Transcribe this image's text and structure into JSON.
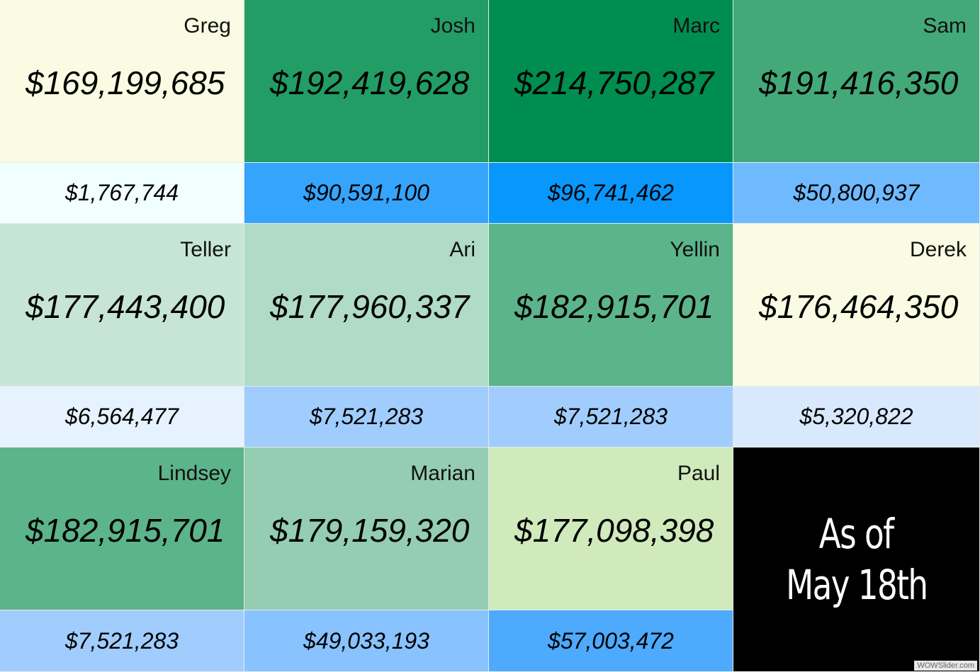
{
  "rows": [
    {
      "cells": [
        {
          "name": "Greg",
          "value": "$169,199,685",
          "sub": "$1,767,744",
          "bg": "#f9fbe2",
          "subbg": "#f1ffff"
        },
        {
          "name": "Josh",
          "value": "$192,419,628",
          "sub": "$90,591,100",
          "bg": "#229d66",
          "subbg": "#35a4fd"
        },
        {
          "name": "Marc",
          "value": "$214,750,287",
          "sub": "$96,741,462",
          "bg": "#008e50",
          "subbg": "#0897fd"
        },
        {
          "name": "Sam",
          "value": "$191,416,350",
          "sub": "$50,800,937",
          "bg": "#43a979",
          "subbg": "#6fbaff"
        }
      ]
    },
    {
      "cells": [
        {
          "name": "Teller",
          "value": "$177,443,400",
          "sub": "$6,564,477",
          "bg": "#c7e5d6",
          "subbg": "#e6f2ff"
        },
        {
          "name": "Ari",
          "value": "$177,960,337",
          "sub": "$7,521,283",
          "bg": "#b0dbc7",
          "subbg": "#a1cdfe"
        },
        {
          "name": "Yellin",
          "value": "$182,915,701",
          "sub": "$7,521,283",
          "bg": "#5cb48b",
          "subbg": "#a1cdfe"
        },
        {
          "name": "Derek",
          "value": "$176,464,350",
          "sub": "$5,320,822",
          "bg": "#f9fbe2",
          "subbg": "#d8e9fe"
        }
      ]
    },
    {
      "cells": [
        {
          "name": "Lindsey",
          "value": "$182,915,701",
          "sub": "$7,521,283",
          "bg": "#5cb48b",
          "subbg": "#a1cdfe"
        },
        {
          "name": "Marian",
          "value": "$179,159,320",
          "sub": "$49,033,193",
          "bg": "#94cdb2",
          "subbg": "#88c3ff"
        },
        {
          "name": "Paul",
          "value": "$177,098,398",
          "sub": "$57,003,472",
          "bg": "#d0eabb",
          "subbg": "#4daafd"
        }
      ]
    }
  ],
  "as_of": {
    "line1": "As of",
    "line2": "May 18th",
    "bg": "#000000"
  },
  "watermark": "WOWSlider.com"
}
